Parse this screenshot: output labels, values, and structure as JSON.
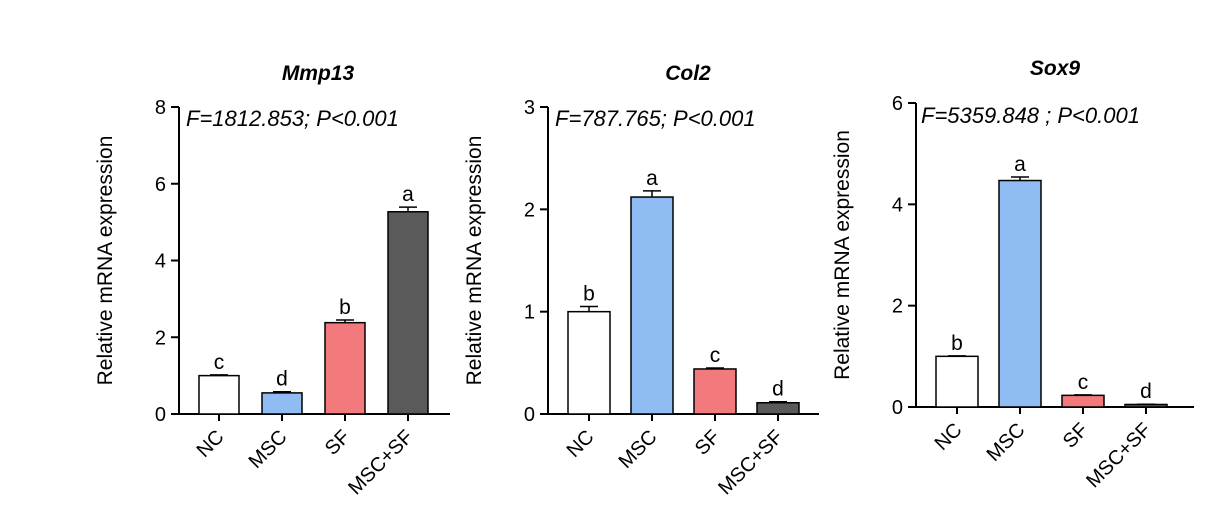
{
  "chart_data": [
    {
      "type": "bar",
      "title": "Mmp13",
      "annotation": "F=1812.853; P<0.001",
      "ylabel": "Relative mRNA expression",
      "ylim": [
        0,
        8
      ],
      "yticks": [
        0,
        2,
        4,
        6,
        8
      ],
      "categories": [
        "NC",
        "MSC",
        "SF",
        "MSC+SF"
      ],
      "values": [
        1.0,
        0.55,
        2.38,
        5.27
      ],
      "errors": [
        0.02,
        0.03,
        0.07,
        0.12
      ],
      "labels": [
        "c",
        "d",
        "b",
        "a"
      ],
      "colors": [
        "#ffffff",
        "#8fbcf2",
        "#f27a7c",
        "#5a5a5a"
      ]
    },
    {
      "type": "bar",
      "title": "Col2",
      "annotation": "F=787.765; P<0.001",
      "ylabel": "Relative mRNA expression",
      "ylim": [
        0,
        3
      ],
      "yticks": [
        0,
        1,
        2,
        3
      ],
      "categories": [
        "NC",
        "MSC",
        "SF",
        "MSC+SF"
      ],
      "values": [
        1.0,
        2.12,
        0.44,
        0.11
      ],
      "errors": [
        0.05,
        0.06,
        0.01,
        0.01
      ],
      "labels": [
        "b",
        "a",
        "c",
        "d"
      ],
      "colors": [
        "#ffffff",
        "#8fbcf2",
        "#f27a7c",
        "#5a5a5a"
      ]
    },
    {
      "type": "bar",
      "title": "Sox9",
      "annotation": "F=5359.848 ; P<0.001",
      "ylabel": "Relative mRNA expression",
      "ylim": [
        0,
        6
      ],
      "yticks": [
        0,
        2,
        4,
        6
      ],
      "categories": [
        "NC",
        "MSC",
        "SF",
        "MSC+SF"
      ],
      "values": [
        1.0,
        4.47,
        0.23,
        0.05
      ],
      "errors": [
        0.01,
        0.07,
        0.01,
        0.005
      ],
      "labels": [
        "b",
        "a",
        "c",
        "d"
      ],
      "colors": [
        "#ffffff",
        "#8fbcf2",
        "#f27a7c",
        "#5a5a5a"
      ]
    }
  ]
}
